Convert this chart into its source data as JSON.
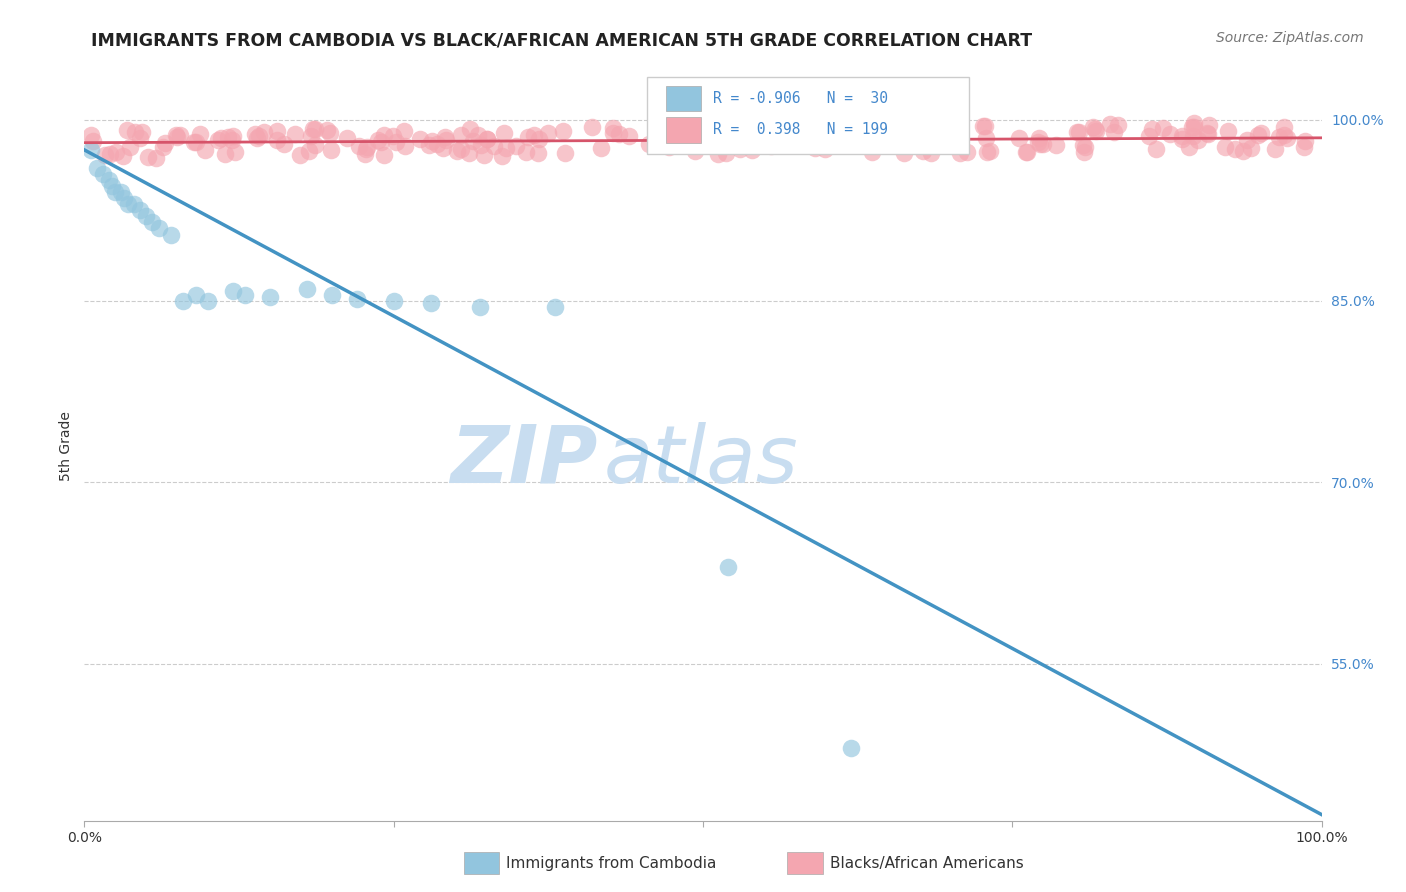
{
  "title": "IMMIGRANTS FROM CAMBODIA VS BLACK/AFRICAN AMERICAN 5TH GRADE CORRELATION CHART",
  "source": "Source: ZipAtlas.com",
  "ylabel": "5th Grade",
  "yticks": [
    0.55,
    0.7,
    0.85,
    1.0
  ],
  "ytick_labels": [
    "55.0%",
    "70.0%",
    "85.0%",
    "100.0%"
  ],
  "blue_R": "-0.906",
  "blue_N": "30",
  "pink_R": "0.398",
  "pink_N": "199",
  "legend_blue": "Immigrants from Cambodia",
  "legend_pink": "Blacks/African Americans",
  "watermark_zip": "ZIP",
  "watermark_atlas": "atlas",
  "blue_color": "#92c5de",
  "blue_line_color": "#4393c3",
  "pink_color": "#f4a6b0",
  "pink_line_color": "#d6546a",
  "blue_scatter_x": [
    0.005,
    0.01,
    0.015,
    0.02,
    0.022,
    0.025,
    0.03,
    0.032,
    0.035,
    0.04,
    0.045,
    0.05,
    0.055,
    0.06,
    0.07,
    0.08,
    0.09,
    0.1,
    0.12,
    0.13,
    0.15,
    0.18,
    0.2,
    0.22,
    0.25,
    0.28,
    0.32,
    0.38,
    0.52,
    0.62
  ],
  "blue_scatter_y": [
    0.975,
    0.96,
    0.955,
    0.95,
    0.945,
    0.94,
    0.94,
    0.935,
    0.93,
    0.93,
    0.925,
    0.92,
    0.915,
    0.91,
    0.905,
    0.85,
    0.855,
    0.85,
    0.858,
    0.855,
    0.853,
    0.86,
    0.855,
    0.852,
    0.85,
    0.848,
    0.845,
    0.845,
    0.63,
    0.48
  ],
  "pink_line_x": [
    0.0,
    1.0
  ],
  "pink_line_y": [
    0.981,
    0.985
  ],
  "blue_line_x": [
    0.0,
    1.0
  ],
  "blue_line_y": [
    0.975,
    0.425
  ],
  "xlim": [
    0.0,
    1.0
  ],
  "ylim": [
    0.42,
    1.04
  ],
  "background_color": "#ffffff",
  "grid_color": "#cccccc",
  "title_fontsize": 12.5,
  "source_fontsize": 10,
  "tick_fontsize": 10,
  "legend_fontsize": 11,
  "watermark_fontsize_zip": 58,
  "watermark_fontsize_atlas": 58,
  "watermark_color": "#c8ddf0"
}
